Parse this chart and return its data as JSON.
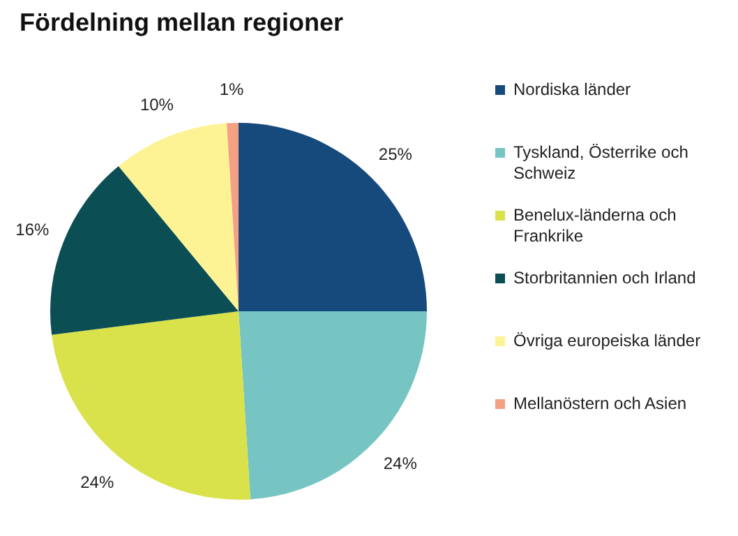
{
  "chart_data": {
    "type": "pie",
    "title": "Fördelning mellan regioner",
    "categories": [
      "Nordiska länder",
      "Tyskland, Österrike och Schweiz",
      "Benelux-länderna och Frankrike",
      "Storbritannien och Irland",
      "Övriga europeiska länder",
      "Mellanöstern och Asien"
    ],
    "values": [
      25,
      24,
      24,
      16,
      10,
      1
    ],
    "colors": [
      "#174a7c",
      "#76c5c3",
      "#d9e24a",
      "#0b4f55",
      "#fdf394",
      "#f4a085"
    ],
    "value_labels": [
      "25%",
      "24%",
      "24%",
      "16%",
      "10%",
      "1%"
    ],
    "legend": "right"
  }
}
